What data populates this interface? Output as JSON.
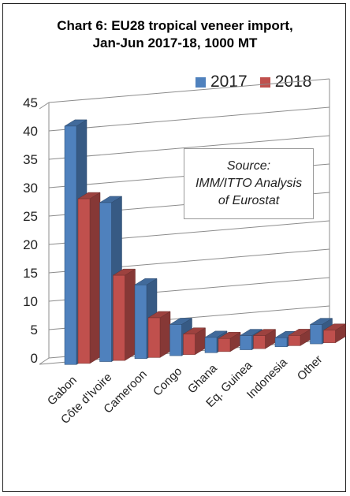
{
  "chart_data": {
    "type": "bar",
    "title_lines": [
      "Chart 6: EU28 tropical veneer import,",
      "Jan-Jun 2017-18, 1000 MT"
    ],
    "categories": [
      "Gabon",
      "Côte d'Ivoire",
      "Cameroon",
      "Congo",
      "Ghana",
      "Eq. Guinea",
      "Indonesia",
      "Other"
    ],
    "series": [
      {
        "name": "2017",
        "color": "#4F81BD",
        "values": [
          42,
          28,
          13,
          5.5,
          2.7,
          2.5,
          1.6,
          3.4
        ]
      },
      {
        "name": "2018",
        "color": "#C0504D",
        "values": [
          29,
          15,
          7,
          3.6,
          2.3,
          2.3,
          1.8,
          2.2
        ]
      }
    ],
    "ylim": [
      0,
      45
    ],
    "yticks": [
      0,
      5,
      10,
      15,
      20,
      25,
      30,
      35,
      40,
      45
    ],
    "grid": true,
    "legend_position": "top-right",
    "annotation_lines": [
      "Source:",
      "IMM/ITTO Analysis",
      "of Eurostat"
    ]
  }
}
